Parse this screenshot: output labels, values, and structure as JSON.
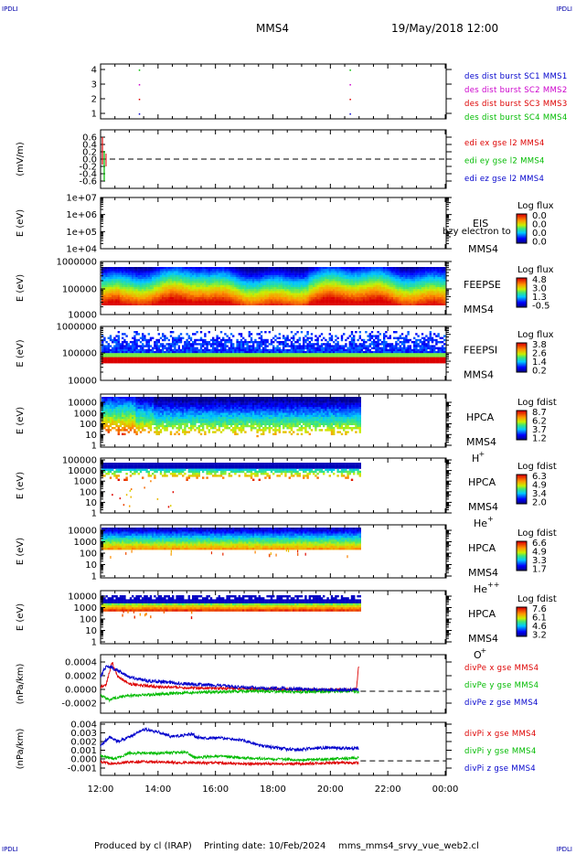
{
  "header": {
    "corner_label": "IPDLI",
    "spacecraft": "MMS4",
    "datetime": "19/May/2018 12:00"
  },
  "footer": {
    "credit": "Produced by cl (IRAP)",
    "printing_date": "Printing date: 10/Feb/2024",
    "filename": "mms_mms4_srvy_vue_web2.cl"
  },
  "colors": {
    "red": "#dd0000",
    "green": "#00bb00",
    "blue": "#0000cc",
    "magenta": "#cc00cc",
    "label_blue": "#0000aa"
  },
  "time_axis": {
    "tick_labels": [
      "12:00",
      "14:00",
      "16:00",
      "18:00",
      "20:00",
      "22:00",
      "00:00"
    ],
    "data_end": "21:00"
  },
  "chart_data": [
    {
      "id": "burst",
      "type": "scatter",
      "yticks": [
        "4",
        "3",
        "2",
        "1"
      ],
      "ylim": [
        0.5,
        4.5
      ],
      "x": [
        "13:20",
        "20:40"
      ],
      "legend": [
        {
          "name": "des dist burst SC1 MMS1",
          "color": "#0000cc"
        },
        {
          "name": "des dist burst SC2 MMS2",
          "color": "#cc00cc"
        },
        {
          "name": "des dist burst SC3 MMS3",
          "color": "#dd0000"
        },
        {
          "name": "des dist burst SC4 MMS4",
          "color": "#00bb00"
        }
      ]
    },
    {
      "id": "edi",
      "type": "line",
      "ylabel": "(mV/m)",
      "yticks": [
        "0.6",
        "0.4",
        "0.2",
        "0.0",
        "-0.2",
        "-0.4",
        "-0.6"
      ],
      "ylim": [
        -0.7,
        0.7
      ],
      "legend": [
        {
          "name": "edi ex gse l2 MMS4",
          "color": "#dd0000"
        },
        {
          "name": "edi ey gse l2 MMS4",
          "color": "#00bb00"
        },
        {
          "name": "edi ez gse l2 MMS4",
          "color": "#0000cc"
        }
      ]
    },
    {
      "id": "eis",
      "type": "heatmap",
      "ylabel": "E (eV)",
      "yticks": [
        "1e+07",
        "1e+06",
        "1e+05",
        "1e+04"
      ],
      "instrument": [
        "EIS",
        "MMS4"
      ],
      "overlap_text": "bzy electron to",
      "cbar_title": "Log flux",
      "cbar_ticks": [
        "0.0",
        "0.0",
        "0.0",
        "0.0"
      ]
    },
    {
      "id": "feepse",
      "type": "heatmap",
      "ylabel": "E (eV)",
      "yticks": [
        "1000000",
        "100000",
        "10000"
      ],
      "instrument": [
        "FEEPSE",
        "MMS4"
      ],
      "cbar_title": "Log flux",
      "cbar_ticks": [
        "4.8",
        "3.0",
        "1.3",
        "-0.5"
      ]
    },
    {
      "id": "feepsi",
      "type": "heatmap",
      "ylabel": "E (eV)",
      "yticks": [
        "1000000",
        "100000",
        "10000"
      ],
      "instrument": [
        "FEEPSI",
        "MMS4"
      ],
      "cbar_title": "Log flux",
      "cbar_ticks": [
        "3.8",
        "2.6",
        "1.4",
        "0.2"
      ]
    },
    {
      "id": "hpca_h",
      "type": "heatmap",
      "ylabel": "E (eV)",
      "yticks": [
        "10000",
        "1000",
        "100",
        "10",
        "1"
      ],
      "instrument": [
        "HPCA",
        "MMS4"
      ],
      "species": "H",
      "charge": "+",
      "cbar_title": "Log fdist",
      "cbar_ticks": [
        "8.7",
        "6.2",
        "3.7",
        "1.2"
      ]
    },
    {
      "id": "hpca_he",
      "type": "heatmap",
      "ylabel": "E (eV)",
      "yticks": [
        "100000",
        "10000",
        "1000",
        "100",
        "10",
        "1"
      ],
      "instrument": [
        "HPCA",
        "MMS4"
      ],
      "species": "He",
      "charge": "+",
      "cbar_title": "Log fdist",
      "cbar_ticks": [
        "6.3",
        "4.9",
        "3.4",
        "2.0"
      ]
    },
    {
      "id": "hpca_he2",
      "type": "heatmap",
      "ylabel": "E (eV)",
      "yticks": [
        "10000",
        "1000",
        "100",
        "10",
        "1"
      ],
      "instrument": [
        "HPCA",
        "MMS4"
      ],
      "species": "He",
      "charge": "++",
      "cbar_title": "Log fdist",
      "cbar_ticks": [
        "6.6",
        "4.9",
        "3.3",
        "1.7"
      ]
    },
    {
      "id": "hpca_o",
      "type": "heatmap",
      "ylabel": "E (eV)",
      "yticks": [
        "10000",
        "1000",
        "100",
        "10",
        "1"
      ],
      "instrument": [
        "HPCA",
        "MMS4"
      ],
      "species": "O",
      "charge": "+",
      "cbar_title": "Log fdist",
      "cbar_ticks": [
        "7.6",
        "6.1",
        "4.6",
        "3.2"
      ]
    },
    {
      "id": "divpe",
      "type": "line",
      "ylabel": "(nPa/km)",
      "yticks": [
        "0.0004",
        "0.0002",
        "0.0000",
        "-0.0002"
      ],
      "ylim": [
        -0.0003,
        0.0005
      ],
      "legend": [
        {
          "name": "divPe x gse MMS4",
          "color": "#dd0000"
        },
        {
          "name": "divPe y gse MMS4",
          "color": "#00bb00"
        },
        {
          "name": "divPe z gse MMS4",
          "color": "#0000cc"
        }
      ],
      "series": [
        {
          "name": "divPe x gse MMS4",
          "x": [
            12.0,
            12.2,
            12.4,
            12.6,
            13.0,
            13.5,
            14.0,
            15.0,
            16.0,
            17.0,
            18.0,
            19.0,
            20.0,
            20.9,
            21.0
          ],
          "values": [
            5e-05,
            0.0001,
            0.0004,
            0.0002,
            0.0001,
            8e-05,
            6e-05,
            5e-05,
            4e-05,
            3e-05,
            3e-05,
            2e-05,
            2e-05,
            2e-05,
            0.0004
          ]
        },
        {
          "name": "divPe y gse MMS4",
          "x": [
            12.0,
            12.3,
            12.6,
            13.0,
            14.0,
            15.0,
            16.0,
            17.0,
            18.0,
            19.0,
            20.0,
            21.0
          ],
          "values": [
            -5e-05,
            -0.00012,
            -8e-05,
            -6e-05,
            -4e-05,
            -2e-05,
            -1e-05,
            0.0,
            0.0,
            -1e-05,
            0.0,
            0.0
          ]
        },
        {
          "name": "divPe z gse MMS4",
          "x": [
            12.0,
            12.2,
            12.5,
            13.0,
            13.5,
            14.0,
            14.5,
            15.0,
            16.0,
            17.0,
            18.0,
            19.0,
            20.0,
            21.0
          ],
          "values": [
            0.0002,
            0.00035,
            0.0003,
            0.0002,
            0.00015,
            0.00013,
            0.00012,
            0.0001,
            8e-05,
            5e-05,
            4e-05,
            3e-05,
            2e-05,
            2e-05
          ]
        }
      ]
    },
    {
      "id": "divpi",
      "type": "line",
      "ylabel": "(nPa/km)",
      "yticks": [
        "0.004",
        "0.003",
        "0.002",
        "0.001",
        "0.000",
        "-0.001"
      ],
      "ylim": [
        -0.0015,
        0.004
      ],
      "legend": [
        {
          "name": "divPi x gse MMS4",
          "color": "#dd0000"
        },
        {
          "name": "divPi y gse MMS4",
          "color": "#00bb00"
        },
        {
          "name": "divPi z gse MMS4",
          "color": "#0000cc"
        }
      ],
      "series": [
        {
          "name": "divPi x gse MMS4",
          "x": [
            12.0,
            12.5,
            13.0,
            14.0,
            15.0,
            16.0,
            17.0,
            18.0,
            19.0,
            20.0,
            21.0
          ],
          "values": [
            -0.0001,
            -0.0003,
            -0.0001,
            -0.0001,
            -0.0002,
            -0.0002,
            -0.0003,
            -0.0003,
            -0.0003,
            -0.0002,
            -0.0002
          ]
        },
        {
          "name": "divPi y gse MMS4",
          "x": [
            12.0,
            12.5,
            13.0,
            14.0,
            15.0,
            15.3,
            16.0,
            17.0,
            18.0,
            19.0,
            20.0,
            21.0
          ],
          "values": [
            0.0005,
            0.0002,
            0.0008,
            0.0008,
            0.0009,
            0.0003,
            0.0005,
            0.0003,
            0.0002,
            0.0001,
            0.0002,
            0.0003
          ]
        },
        {
          "name": "divPi z gse MMS4",
          "x": [
            12.0,
            12.3,
            12.6,
            13.0,
            13.5,
            14.0,
            14.5,
            15.0,
            15.2,
            15.3,
            15.6,
            16.0,
            16.5,
            17.0,
            17.5,
            18.0,
            18.5,
            19.0,
            19.5,
            20.0,
            20.5,
            21.0
          ],
          "values": [
            0.0015,
            0.0025,
            0.002,
            0.0025,
            0.0033,
            0.003,
            0.0025,
            0.0027,
            0.0028,
            0.0025,
            0.0024,
            0.0024,
            0.0023,
            0.0021,
            0.0016,
            0.0014,
            0.0012,
            0.0012,
            0.0013,
            0.0014,
            0.0013,
            0.0013
          ]
        }
      ]
    }
  ]
}
